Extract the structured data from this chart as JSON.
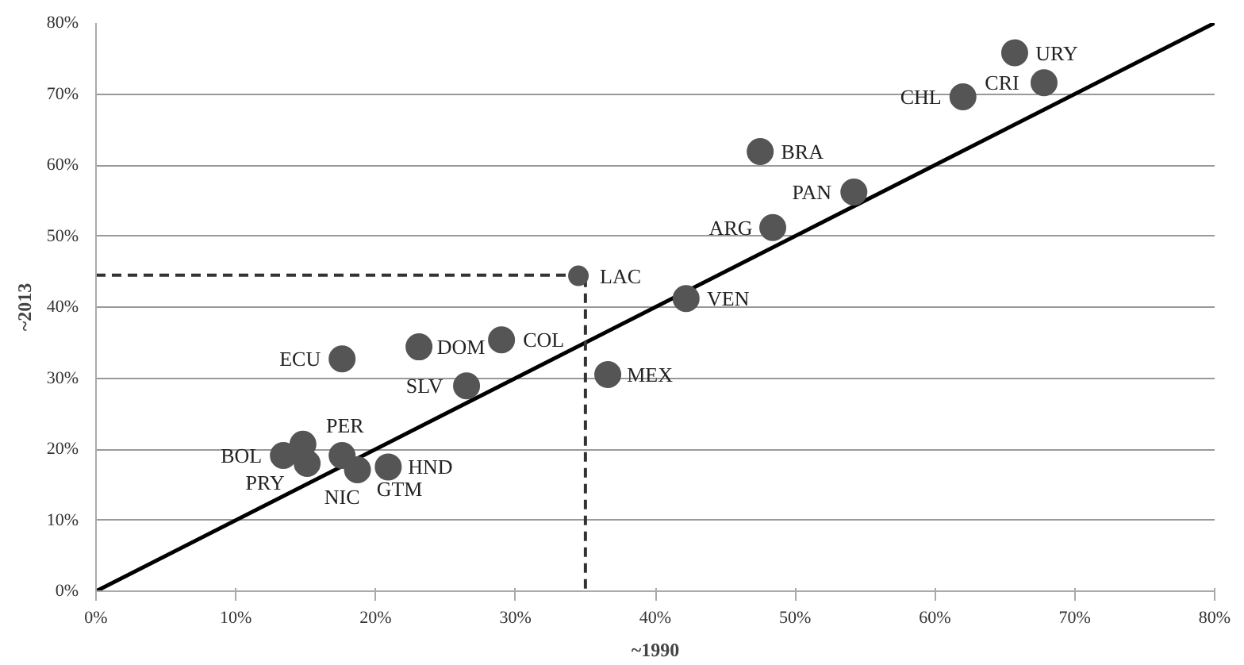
{
  "chart_data": {
    "type": "scatter",
    "xlabel": "~1990",
    "ylabel": "~2013",
    "xlim": [
      0,
      80
    ],
    "ylim": [
      0,
      80
    ],
    "xticks": [
      {
        "value": 0,
        "label": "0%"
      },
      {
        "value": 10,
        "label": "10%"
      },
      {
        "value": 20,
        "label": "20%"
      },
      {
        "value": 30,
        "label": "30%"
      },
      {
        "value": 40,
        "label": "40%"
      },
      {
        "value": 50,
        "label": "50%"
      },
      {
        "value": 60,
        "label": "60%"
      },
      {
        "value": 70,
        "label": "70%"
      },
      {
        "value": 80,
        "label": "80%"
      }
    ],
    "yticks": [
      {
        "value": 0,
        "label": "0%"
      },
      {
        "value": 10,
        "label": "10%"
      },
      {
        "value": 20,
        "label": "20%"
      },
      {
        "value": 30,
        "label": "30%"
      },
      {
        "value": 40,
        "label": "40%"
      },
      {
        "value": 50,
        "label": "50%"
      },
      {
        "value": 60,
        "label": "60%"
      },
      {
        "value": 70,
        "label": "70%"
      },
      {
        "value": 80,
        "label": "80%"
      }
    ],
    "grid": "y",
    "marker": "circle",
    "series": [
      {
        "type": "line",
        "color": "#000000",
        "line_style": "solid",
        "marker": "none",
        "x": [
          0,
          80
        ],
        "values": [
          0,
          80
        ]
      },
      {
        "type": "line",
        "color": "#333333",
        "line_style": "dashed",
        "marker": "none",
        "x": [
          0,
          35,
          35
        ],
        "values": [
          44.5,
          44.5,
          0
        ]
      },
      {
        "color": "#555555",
        "x": [
          65.7,
          67.8,
          62.0,
          47.5,
          54.2,
          48.4,
          42.2,
          36.6,
          23.1,
          29.0,
          17.6,
          26.5,
          14.8,
          13.4,
          15.1,
          17.6,
          20.9,
          18.7
        ],
        "values": [
          75.8,
          71.6,
          69.6,
          61.9,
          56.2,
          51.2,
          41.2,
          30.5,
          34.4,
          35.4,
          32.7,
          28.9,
          20.7,
          19.1,
          18.0,
          19.1,
          17.5,
          17.1
        ]
      },
      {
        "color": "#555555",
        "x": [
          34.5
        ],
        "values": [
          44.4
        ]
      }
    ],
    "annotations": [
      {
        "text": "URY",
        "x": 65.7,
        "y": 75.8
      },
      {
        "text": "CRI",
        "x": 67.8,
        "y": 71.6
      },
      {
        "text": "CHL",
        "x": 62.0,
        "y": 69.6
      },
      {
        "text": "BRA",
        "x": 47.5,
        "y": 61.9
      },
      {
        "text": "PAN",
        "x": 54.2,
        "y": 56.2
      },
      {
        "text": "ARG",
        "x": 48.4,
        "y": 51.2
      },
      {
        "text": "LAC",
        "x": 34.5,
        "y": 44.4
      },
      {
        "text": "VEN",
        "x": 42.2,
        "y": 41.2
      },
      {
        "text": "MEX",
        "x": 36.6,
        "y": 30.5
      },
      {
        "text": "DOM",
        "x": 23.1,
        "y": 34.4
      },
      {
        "text": "COL",
        "x": 29.0,
        "y": 35.4
      },
      {
        "text": "ECU",
        "x": 17.6,
        "y": 32.7
      },
      {
        "text": "SLV",
        "x": 26.5,
        "y": 28.9
      },
      {
        "text": "PER",
        "x": 14.8,
        "y": 20.7
      },
      {
        "text": "BOL",
        "x": 13.4,
        "y": 19.1
      },
      {
        "text": "PRY",
        "x": 15.1,
        "y": 18.0
      },
      {
        "text": "NIC",
        "x": 17.6,
        "y": 19.1
      },
      {
        "text": "HND",
        "x": 20.9,
        "y": 17.5
      },
      {
        "text": "GTM",
        "x": 18.7,
        "y": 17.1
      }
    ]
  }
}
